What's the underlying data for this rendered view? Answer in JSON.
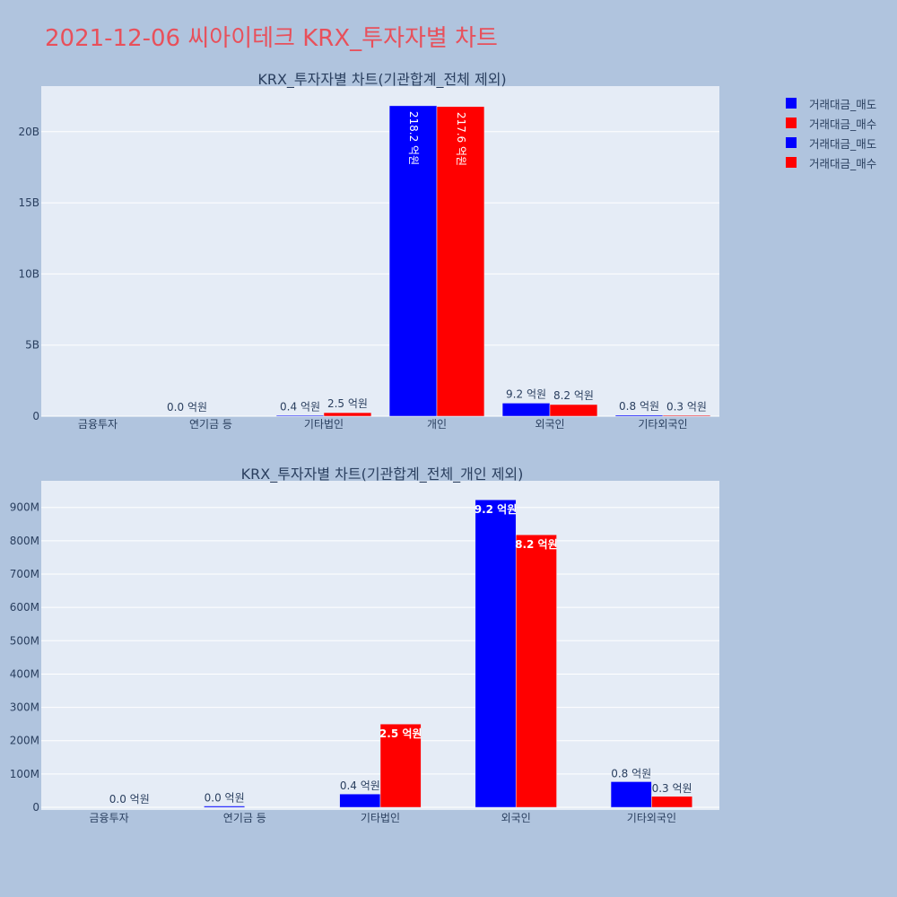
{
  "page": {
    "title": "2021-12-06 씨아이테크 KRX_투자자별 차트"
  },
  "colors": {
    "sell": "#0000ff",
    "buy": "#ff0000",
    "plot_bg": "#e5ecf6",
    "page_bg": "#b0c4de",
    "title": "#e8505b"
  },
  "legend": {
    "items": [
      {
        "label": "거래대금_매도",
        "color": "#0000ff"
      },
      {
        "label": "거래대금_매수",
        "color": "#ff0000"
      },
      {
        "label": "거래대금_매도",
        "color": "#0000ff"
      },
      {
        "label": "거래대금_매수",
        "color": "#ff0000"
      }
    ]
  },
  "chart_data": [
    {
      "type": "bar",
      "title": "KRX_투자자별 차트(기관합계_전체 제외)",
      "categories": [
        "금융투자",
        "연기금 등",
        "기타법인",
        "개인",
        "외국인",
        "기타외국인"
      ],
      "series": [
        {
          "name": "거래대금_매도",
          "color": "#0000ff",
          "values": [
            0,
            0,
            40000000,
            21820000000,
            920000000,
            77000000
          ],
          "labels": [
            "",
            "0.0 억원",
            "0.4 억원",
            "218.2 억원",
            "9.2 억원",
            "0.8 억원"
          ]
        },
        {
          "name": "거래대금_매수",
          "color": "#ff0000",
          "values": [
            0,
            0,
            250000000,
            21760000000,
            820000000,
            33000000
          ],
          "labels": [
            "",
            "",
            "2.5 억원",
            "217.6 억원",
            "8.2 억원",
            "0.3 억원"
          ]
        }
      ],
      "ylim": [
        0,
        23200000000
      ],
      "yticks": [
        0,
        5000000000,
        10000000000,
        15000000000,
        20000000000
      ],
      "yticklabels": [
        "0",
        "5B",
        "10B",
        "15B",
        "20B"
      ],
      "grid": true
    },
    {
      "type": "bar",
      "title": "KRX_투자자별 차트(기관합계_전체_개인 제외)",
      "categories": [
        "금융투자",
        "연기금 등",
        "기타법인",
        "외국인",
        "기타외국인"
      ],
      "series": [
        {
          "name": "거래대금_매도",
          "color": "#0000ff",
          "values": [
            0,
            4000000,
            40000000,
            923000000,
            77000000
          ],
          "labels": [
            "",
            "0.0 억원",
            "0.4 억원",
            "9.2 억원",
            "0.8 억원"
          ]
        },
        {
          "name": "거래대금_매수",
          "color": "#ff0000",
          "values": [
            0,
            0,
            250000000,
            818000000,
            33000000
          ],
          "labels": [
            "0.0 억원",
            "",
            "2.5 억원",
            "8.2 억원",
            "0.3 억원"
          ]
        }
      ],
      "ylim": [
        -8000000,
        980000000
      ],
      "yticks": [
        0,
        100000000,
        200000000,
        300000000,
        400000000,
        500000000,
        600000000,
        700000000,
        800000000,
        900000000
      ],
      "yticklabels": [
        "0",
        "100M",
        "200M",
        "300M",
        "400M",
        "500M",
        "600M",
        "700M",
        "800M",
        "900M"
      ],
      "grid": true
    }
  ]
}
